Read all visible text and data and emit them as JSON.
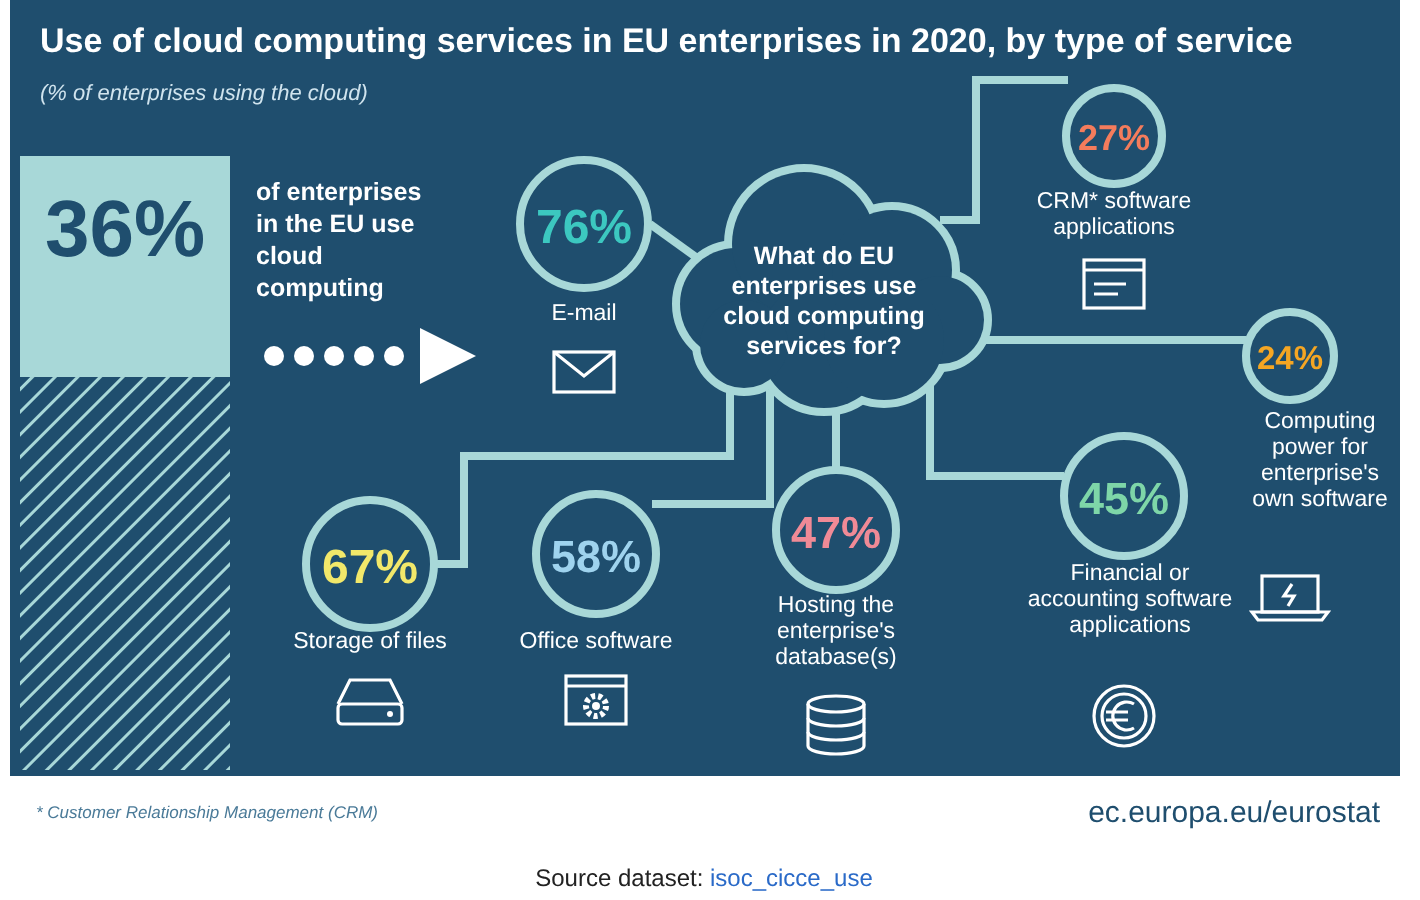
{
  "chart_data": {
    "type": "other",
    "title": "Use of cloud computing services in EU enterprises in 2020, by type of service",
    "subtitle": "(% of enterprises using the cloud)",
    "categories": [
      "of enterprises in the EU use cloud computing",
      "E-mail",
      "Storage of files",
      "Office software",
      "Hosting the enterprise's database(s)",
      "Financial or accounting software applications",
      "Computing power for enterprise's own software",
      "CRM* software applications"
    ],
    "values": [
      36,
      76,
      67,
      58,
      47,
      45,
      24,
      27
    ],
    "value_labels": [
      "36%",
      "76%",
      "67%",
      "58%",
      "47%",
      "45%",
      "24%",
      "27%"
    ],
    "annotations": [
      "What do EU enterprises use cloud computing services for?",
      "* Customer Relationship Management (CRM)",
      "ec.europa.eu/eurostat",
      "Source dataset:",
      "isoc_cicce_use"
    ]
  }
}
